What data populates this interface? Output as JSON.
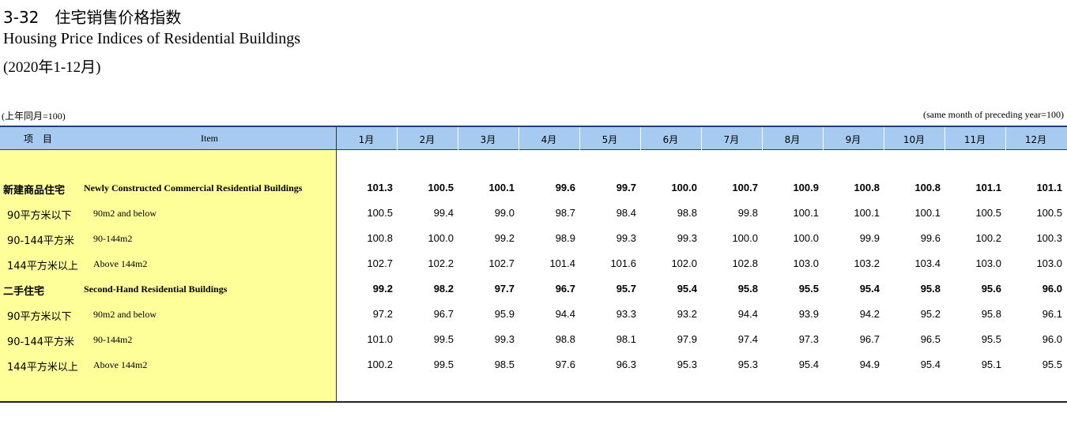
{
  "title": "3-32　住宅销售价格指数",
  "title_en": "Housing Price Indices of Residential Buildings",
  "period": "(2020年1-12月)",
  "unit_cn": "(上年同月=100)",
  "unit_en": "(same month of preceding year=100)",
  "table": {
    "header": [
      "项　目",
      "Item",
      "1月",
      "2月",
      "3月",
      "4月",
      "5月",
      "6月",
      "7月",
      "8月",
      "9月",
      "10月",
      "11月",
      "12月"
    ],
    "rows": [
      {
        "cn": "新建商品住宅",
        "en": "Newly Constructed Commercial Residential Buildings",
        "bold": true,
        "values": [
          "101.3",
          "100.5",
          "100.1",
          "99.6",
          "99.7",
          "100.0",
          "100.7",
          "100.9",
          "100.8",
          "100.8",
          "101.1",
          "101.1"
        ]
      },
      {
        "cn": "90平方米以下",
        "en": "90m2 and below",
        "bold": false,
        "values": [
          "100.5",
          "99.4",
          "99.0",
          "98.7",
          "98.4",
          "98.8",
          "99.8",
          "100.1",
          "100.1",
          "100.1",
          "100.5",
          "100.5"
        ]
      },
      {
        "cn": "90-144平方米",
        "en": "90-144m2",
        "bold": false,
        "values": [
          "100.8",
          "100.0",
          "99.2",
          "98.9",
          "99.3",
          "99.3",
          "100.0",
          "100.0",
          "99.9",
          "99.6",
          "100.2",
          "100.3"
        ]
      },
      {
        "cn": "144平方米以上",
        "en": "Above 144m2",
        "bold": false,
        "values": [
          "102.7",
          "102.2",
          "102.7",
          "101.4",
          "101.6",
          "102.0",
          "102.8",
          "103.0",
          "103.2",
          "103.4",
          "103.0",
          "103.0"
        ]
      },
      {
        "cn": "二手住宅",
        "en": "Second-Hand Residential Buildings",
        "bold": true,
        "values": [
          "99.2",
          "98.2",
          "97.7",
          "96.7",
          "95.7",
          "95.4",
          "95.8",
          "95.5",
          "95.4",
          "95.8",
          "95.6",
          "96.0"
        ]
      },
      {
        "cn": "90平方米以下",
        "en": "90m2 and below",
        "bold": false,
        "values": [
          "97.2",
          "96.7",
          "95.9",
          "94.4",
          "93.3",
          "93.2",
          "94.4",
          "93.9",
          "94.2",
          "95.2",
          "95.8",
          "96.1"
        ]
      },
      {
        "cn": "90-144平方米",
        "en": "90-144m2",
        "bold": false,
        "values": [
          "101.0",
          "99.5",
          "99.3",
          "98.8",
          "98.1",
          "97.9",
          "97.4",
          "97.3",
          "96.7",
          "96.5",
          "95.5",
          "96.0"
        ]
      },
      {
        "cn": "144平方米以上",
        "en": "Above 144m2",
        "bold": false,
        "values": [
          "100.2",
          "99.5",
          "98.5",
          "97.6",
          "96.3",
          "95.3",
          "95.3",
          "95.4",
          "94.9",
          "95.4",
          "95.1",
          "95.5"
        ]
      }
    ]
  }
}
